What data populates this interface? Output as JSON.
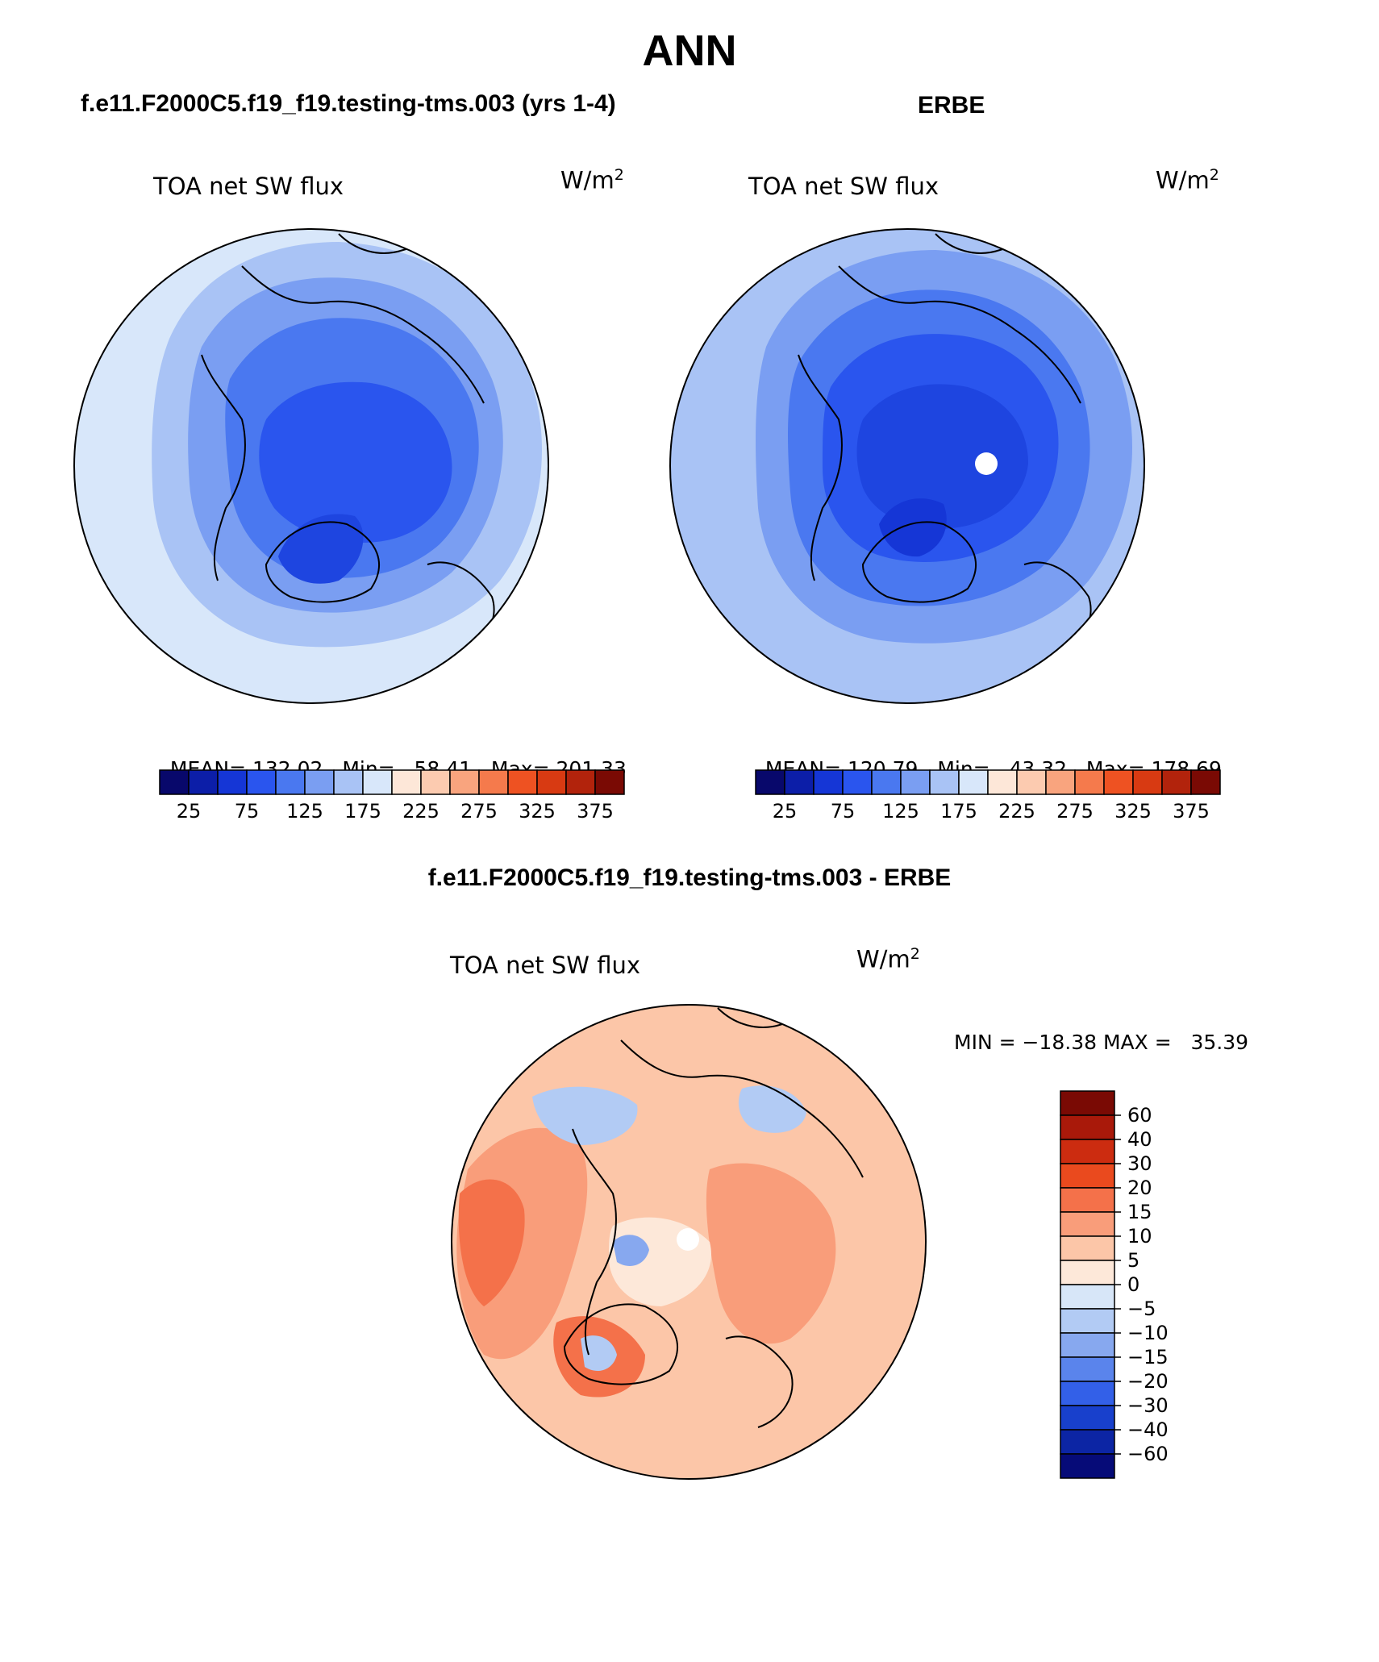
{
  "title": "ANN",
  "panels": [
    {
      "id": "model",
      "header": "f.e11.F2000C5.f19_f19.testing-tms.003 (yrs 1-4)",
      "variable": "TOA net SW flux",
      "units": "W/m",
      "units_sup": "2",
      "stats": {
        "mean_label": "MEAN=",
        "mean": "132.02",
        "min_label": "Min=",
        "min": "58.41",
        "max_label": "Max=",
        "max": "201.33"
      },
      "pole_mask": false
    },
    {
      "id": "obs",
      "header": "ERBE",
      "variable": "TOA net SW flux",
      "units": "W/m",
      "units_sup": "2",
      "stats": {
        "mean_label": "MEAN=",
        "mean": "120.79",
        "min_label": "Min=",
        "min": "43.32",
        "max_label": "Max=",
        "max": "178.69"
      },
      "pole_mask": true
    }
  ],
  "abs_colorbar": {
    "colors": [
      "#08086b",
      "#0c1ea8",
      "#1536d6",
      "#2a55ee",
      "#4a78f0",
      "#7a9ef2",
      "#a9c3f5",
      "#d8e7fa",
      "#fde7d8",
      "#fccbb0",
      "#f9a47e",
      "#f57a4c",
      "#ee5222",
      "#d83a12",
      "#b2230c",
      "#7a0a04"
    ],
    "tick_labels": [
      "25",
      "75",
      "125",
      "175",
      "225",
      "275",
      "325",
      "375"
    ]
  },
  "difference": {
    "header": "f.e11.F2000C5.f19_f19.testing-tms.003 - ERBE",
    "variable": "TOA net SW flux",
    "units": "W/m",
    "units_sup": "2",
    "min_max_text": "MIN = −18.38 MAX =   35.39",
    "colorbar": {
      "colors_top_to_bottom": [
        "#7a0a04",
        "#a9190a",
        "#cc2c10",
        "#ea4a1e",
        "#f4714a",
        "#f99d7a",
        "#fcc6a8",
        "#fde8d9",
        "#d7e6f8",
        "#b2cbf4",
        "#87a8ef",
        "#5a84ec",
        "#3360e8",
        "#1840cc",
        "#0c25a4",
        "#060b78"
      ],
      "tick_labels": [
        "60",
        "40",
        "30",
        "20",
        "15",
        "10",
        "5",
        "0",
        "−5",
        "−10",
        "−15",
        "−20",
        "−30",
        "−40",
        "−60"
      ]
    }
  },
  "field_colors": {
    "model": {
      "outer": "#d8e7fa",
      "ring1": "#a9c3f5",
      "ring2": "#7a9ef2",
      "ring3": "#4a78f0",
      "core": "#2a55ee",
      "deep": "#1e45e0"
    },
    "obs": {
      "outer": "#a9c3f5",
      "ring1": "#7a9ef2",
      "ring2": "#4a78f0",
      "ring3": "#2a55ee",
      "core": "#1e45e0",
      "deep": "#1536d6"
    },
    "diff": {
      "base": "#fcc6a8",
      "warm": "#f99d7a",
      "hot": "#f4714a",
      "light": "#fde8d9",
      "cool": "#b2cbf4",
      "cooler": "#87a8ef"
    }
  }
}
